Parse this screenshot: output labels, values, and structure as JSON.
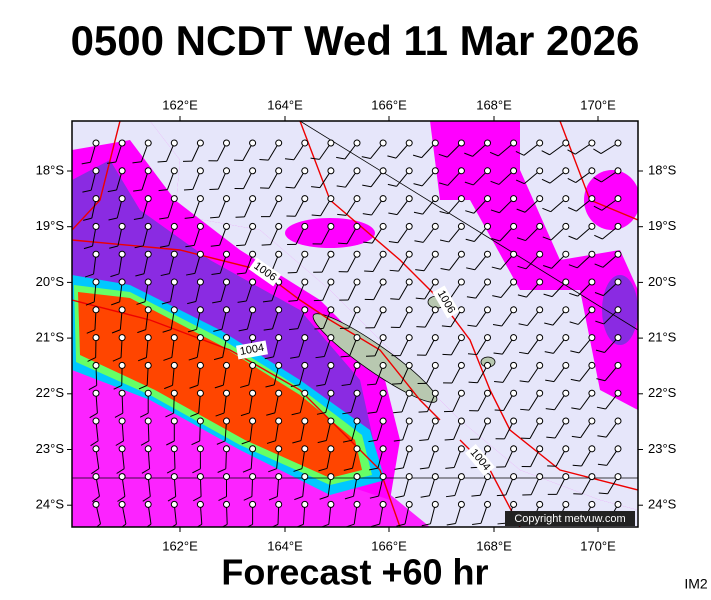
{
  "header": {
    "title": "0500 NCDT Wed 11 Mar 2026"
  },
  "map": {
    "longitude_labels": [
      "162°E",
      "164°E",
      "166°E",
      "168°E",
      "170°E"
    ],
    "latitude_labels": [
      "18°S",
      "19°S",
      "20°S",
      "21°S",
      "22°S",
      "23°S",
      "24°S"
    ],
    "contour_labels": [
      "1006",
      "1006",
      "1004",
      "1004"
    ],
    "copyright": "Copyright metvuw.com"
  },
  "footer": {
    "caption": "Forecast +60 hr",
    "image_id": "IM2"
  }
}
